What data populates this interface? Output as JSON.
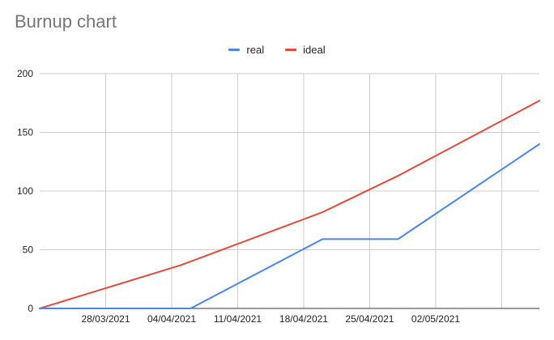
{
  "chart_data": {
    "type": "line",
    "title": "Burnup chart",
    "xlabel": "",
    "ylabel": "",
    "x_start": "2021-03-21",
    "x_end": "2021-05-13",
    "x_ticks": [
      {
        "date": "2021-03-28",
        "label": "28/03/2021"
      },
      {
        "date": "2021-04-04",
        "label": "04/04/2021"
      },
      {
        "date": "2021-04-11",
        "label": "11/04/2021"
      },
      {
        "date": "2021-04-18",
        "label": "18/04/2021"
      },
      {
        "date": "2021-04-25",
        "label": "25/04/2021"
      },
      {
        "date": "2021-05-02",
        "label": "02/05/2021"
      }
    ],
    "y_ticks": [
      0,
      50,
      100,
      150,
      200
    ],
    "ylim": [
      0,
      200
    ],
    "legend_position": "top",
    "grid": true,
    "series": [
      {
        "name": "real",
        "color": "#4a86e8",
        "points": [
          {
            "x": "2021-03-21",
            "y": 0
          },
          {
            "x": "2021-04-06",
            "y": 0
          },
          {
            "x": "2021-04-20",
            "y": 59
          },
          {
            "x": "2021-04-28",
            "y": 59
          },
          {
            "x": "2021-05-13",
            "y": 140
          }
        ]
      },
      {
        "name": "ideal",
        "color": "#e04b3c",
        "points": [
          {
            "x": "2021-03-21",
            "y": 0
          },
          {
            "x": "2021-04-05",
            "y": 37
          },
          {
            "x": "2021-04-20",
            "y": 82
          },
          {
            "x": "2021-04-28",
            "y": 113
          },
          {
            "x": "2021-05-13",
            "y": 177
          }
        ]
      }
    ]
  }
}
